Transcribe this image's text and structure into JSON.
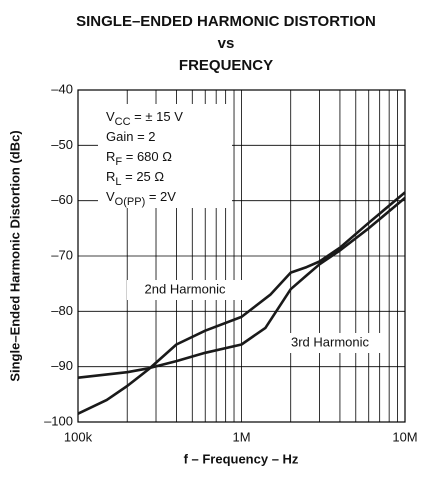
{
  "chart_data": {
    "type": "line",
    "title": [
      "SINGLE–ENDED HARMONIC DISTORTION",
      "vs",
      "FREQUENCY"
    ],
    "xlabel": "f – Frequency – Hz",
    "ylabel": "Single–Ended Harmonic Distortion (dBc)",
    "xscale": "log",
    "xlim": [
      100000,
      10000000
    ],
    "ylim": [
      -100,
      -40
    ],
    "xticks": [
      {
        "value": 100000,
        "label": "100k"
      },
      {
        "value": 1000000,
        "label": "1M"
      },
      {
        "value": 10000000,
        "label": "10M"
      }
    ],
    "yticks": [
      {
        "value": -100,
        "label": "–100"
      },
      {
        "value": -90,
        "label": "–90"
      },
      {
        "value": -80,
        "label": "–80"
      },
      {
        "value": -70,
        "label": "–70"
      },
      {
        "value": -60,
        "label": "–60"
      },
      {
        "value": -50,
        "label": "–50"
      },
      {
        "value": -40,
        "label": "–40"
      }
    ],
    "grid": true,
    "minor_grid": true,
    "annotations": [
      {
        "base": "V",
        "sub": "CC",
        "text": " = ± 15 V"
      },
      {
        "text": "Gain = 2"
      },
      {
        "base": "R",
        "sub": "F",
        "text": " = 680 Ω"
      },
      {
        "base": "R",
        "sub": "L",
        "text": " = 25 Ω"
      },
      {
        "base": "V",
        "sub": "O(PP)",
        "text": " = 2V"
      }
    ],
    "series": [
      {
        "name": "2nd Harmonic",
        "color": "#1a1a1a",
        "x": [
          100000,
          200000,
          270000,
          400000,
          600000,
          1000000,
          1400000,
          2000000,
          2500000,
          3000000,
          4000000,
          6000000,
          10000000
        ],
        "values": [
          -92,
          -91,
          -90.3,
          -89,
          -87.5,
          -86,
          -83,
          -76,
          -73.5,
          -71.5,
          -69,
          -65,
          -59.5
        ]
      },
      {
        "name": "3rd Harmonic",
        "color": "#1a1a1a",
        "x": [
          100000,
          150000,
          200000,
          270000,
          400000,
          600000,
          1000000,
          1500000,
          2000000,
          2500000,
          3000000,
          4000000,
          6000000,
          10000000
        ],
        "values": [
          -98.5,
          -96,
          -93.5,
          -90.5,
          -86,
          -83.5,
          -81,
          -77,
          -73,
          -72,
          -71,
          -68.5,
          -64,
          -58.5
        ]
      }
    ]
  }
}
